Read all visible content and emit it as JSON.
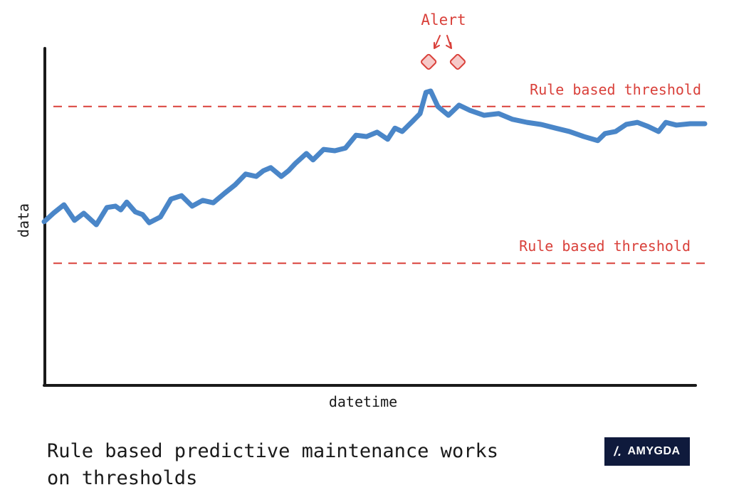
{
  "chart_data": {
    "type": "line",
    "title": "",
    "xlabel": "datetime",
    "ylabel": "data",
    "xlim": [
      0,
      100
    ],
    "ylim": [
      0,
      100
    ],
    "grid": false,
    "series": [
      {
        "name": "data",
        "color": "#4a86c8",
        "points": [
          [
            0,
            49.1
          ],
          [
            1.4,
            51.6
          ],
          [
            3.0,
            54.1
          ],
          [
            4.6,
            49.5
          ],
          [
            6.0,
            51.6
          ],
          [
            7.9,
            48.2
          ],
          [
            9.5,
            53.3
          ],
          [
            10.8,
            53.7
          ],
          [
            11.6,
            52.6
          ],
          [
            12.5,
            54.9
          ],
          [
            13.8,
            52.0
          ],
          [
            14.9,
            51.2
          ],
          [
            15.9,
            48.8
          ],
          [
            17.6,
            50.5
          ],
          [
            19.2,
            55.8
          ],
          [
            20.8,
            56.8
          ],
          [
            22.4,
            53.7
          ],
          [
            24.0,
            55.4
          ],
          [
            25.6,
            54.7
          ],
          [
            27.3,
            57.5
          ],
          [
            28.9,
            60.0
          ],
          [
            30.5,
            63.2
          ],
          [
            32.1,
            62.5
          ],
          [
            33.2,
            64.2
          ],
          [
            34.3,
            65.1
          ],
          [
            35.9,
            62.5
          ],
          [
            37.0,
            64.2
          ],
          [
            38.0,
            66.3
          ],
          [
            39.7,
            69.3
          ],
          [
            40.7,
            67.4
          ],
          [
            42.3,
            70.5
          ],
          [
            44.0,
            70.1
          ],
          [
            45.6,
            70.9
          ],
          [
            47.2,
            74.7
          ],
          [
            48.8,
            74.3
          ],
          [
            50.4,
            75.6
          ],
          [
            52.0,
            73.5
          ],
          [
            53.1,
            76.8
          ],
          [
            54.2,
            75.8
          ],
          [
            55.8,
            78.9
          ],
          [
            56.9,
            81.1
          ],
          [
            57.8,
            87.4
          ],
          [
            58.5,
            87.8
          ],
          [
            59.6,
            83.2
          ],
          [
            61.2,
            80.6
          ],
          [
            62.8,
            83.6
          ],
          [
            64.4,
            82.1
          ],
          [
            66.6,
            80.6
          ],
          [
            68.8,
            81.1
          ],
          [
            70.9,
            79.4
          ],
          [
            73.1,
            78.5
          ],
          [
            75.2,
            77.9
          ],
          [
            77.4,
            76.8
          ],
          [
            79.5,
            75.8
          ],
          [
            81.7,
            74.3
          ],
          [
            83.8,
            73.1
          ],
          [
            84.9,
            75.2
          ],
          [
            86.5,
            75.8
          ],
          [
            88.1,
            77.9
          ],
          [
            89.8,
            78.5
          ],
          [
            91.4,
            77.3
          ],
          [
            93.0,
            75.8
          ],
          [
            94.1,
            78.5
          ],
          [
            95.7,
            77.7
          ],
          [
            97.8,
            78.1
          ],
          [
            100,
            78.1
          ]
        ]
      }
    ],
    "thresholds": [
      {
        "label": "Rule based threshold",
        "value": 83.2,
        "color": "#d9403a"
      },
      {
        "label": "Rule based threshold",
        "value": 36.8,
        "color": "#d9403a"
      }
    ],
    "annotation": {
      "label": "Alert",
      "markers_at_x": [
        58.2,
        62.6
      ],
      "color": "#d9403a",
      "fill": "#f6c9c8"
    }
  },
  "caption": {
    "line1": "Rule based predictive maintenance works",
    "line2": "on thresholds"
  },
  "logo": {
    "mark": "/.",
    "text": "AMYGDA"
  }
}
